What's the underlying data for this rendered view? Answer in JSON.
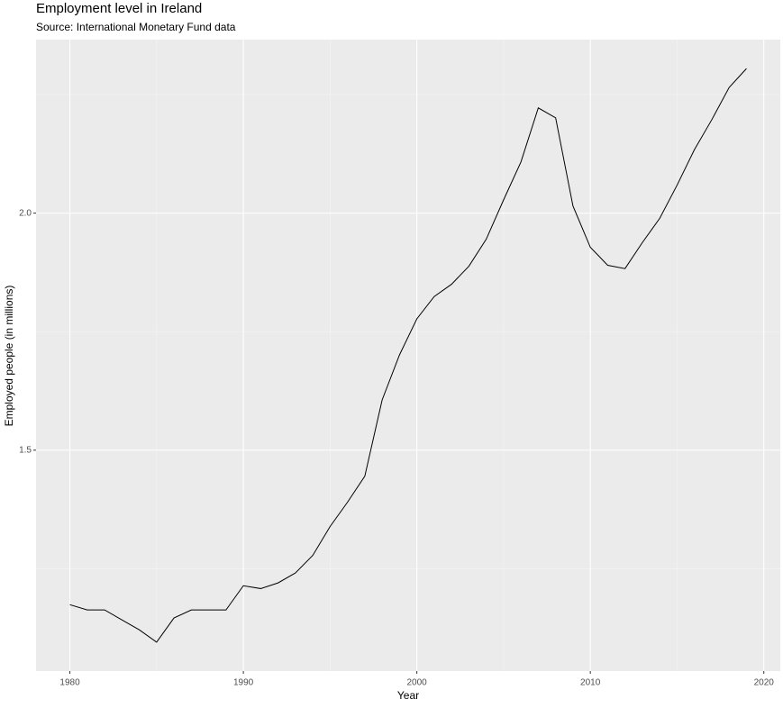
{
  "chart_data": {
    "type": "line",
    "title": "Employment level in Ireland",
    "subtitle": "Source: International Monetary Fund data",
    "x_label": "Year",
    "y_label": "Employed people (in millions)",
    "x": [
      1980,
      1981,
      1982,
      1983,
      1984,
      1985,
      1986,
      1987,
      1988,
      1989,
      1990,
      1991,
      1992,
      1993,
      1994,
      1995,
      1996,
      1997,
      1998,
      1999,
      2000,
      2001,
      2002,
      2003,
      2004,
      2005,
      2006,
      2007,
      2008,
      2009,
      2010,
      2011,
      2012,
      2013,
      2014,
      2015,
      2016,
      2017,
      2018,
      2019
    ],
    "series": [
      {
        "color": "#000000",
        "values": [
          1.174,
          1.163,
          1.163,
          1.142,
          1.121,
          1.095,
          1.146,
          1.163,
          1.163,
          1.163,
          1.214,
          1.208,
          1.22,
          1.241,
          1.278,
          1.339,
          1.39,
          1.445,
          1.606,
          1.701,
          1.777,
          1.824,
          1.85,
          1.888,
          1.945,
          2.028,
          2.108,
          2.222,
          2.201,
          2.015,
          1.928,
          1.89,
          1.883,
          1.938,
          1.989,
          2.059,
          2.134,
          2.197,
          2.265,
          2.305
        ]
      }
    ],
    "xlim": [
      1978.05,
      2020.95
    ],
    "xticks": [
      1980,
      1990,
      2000,
      2010,
      2020
    ],
    "ylim": [
      1.034,
      2.366
    ],
    "yticks": [
      1.5,
      {
        "value": 2,
        "label": "2.0"
      }
    ],
    "grid": true,
    "minor_grid": true
  }
}
